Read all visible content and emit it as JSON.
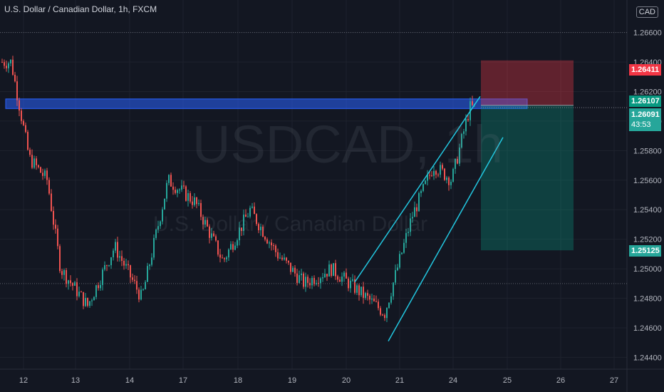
{
  "header": {
    "symbol_title": "U.S. Dollar / Canadian Dollar, 1h, FXCM",
    "currency": "CAD"
  },
  "watermark": {
    "ticker": "USDCAD, 1h",
    "name": "U.S. Dollar / Canadian Dollar"
  },
  "price_tags": {
    "stop": {
      "value": "1.26411",
      "color": "#f23645"
    },
    "entry": {
      "value": "1.26107",
      "color": "#089981"
    },
    "last": {
      "value": "1.26091",
      "countdown": "43:53",
      "color": "#26a69a"
    },
    "target": {
      "value": "1.25125",
      "color": "#26a69a"
    }
  },
  "chart_data": {
    "type": "candlestick",
    "y_ticks": [
      "1.26600",
      "1.26400",
      "1.26200",
      "1.26000",
      "1.25800",
      "1.25600",
      "1.25400",
      "1.25200",
      "1.25000",
      "1.24800",
      "1.24600",
      "1.24400"
    ],
    "x_ticks": [
      "12",
      "13",
      "14",
      "17",
      "18",
      "19",
      "20",
      "21",
      "24",
      "25",
      "26",
      "27"
    ],
    "ylim": [
      1.2432,
      1.2682
    ],
    "grid": true,
    "close_path": [
      [
        "12",
        1.264
      ],
      [
        "12",
        1.2575
      ],
      [
        "12",
        1.256
      ],
      [
        "13",
        1.25
      ],
      [
        "13",
        1.2475
      ],
      [
        "14",
        1.2515
      ],
      [
        "14",
        1.248
      ],
      [
        "17",
        1.256
      ],
      [
        "17",
        1.2545
      ],
      [
        "18",
        1.2505
      ],
      [
        "18",
        1.254
      ],
      [
        "19",
        1.251
      ],
      [
        "19",
        1.249
      ],
      [
        "20",
        1.25
      ],
      [
        "20",
        1.2485
      ],
      [
        "21",
        1.247
      ],
      [
        "21",
        1.2535
      ],
      [
        "24",
        1.257
      ],
      [
        "24",
        1.256
      ],
      [
        "24",
        1.26091
      ]
    ],
    "horizontal_levels": [
      1.266,
      1.249
    ],
    "supply_zone": {
      "top": 1.2615,
      "bottom": 1.26085,
      "from": "12",
      "to": "25"
    },
    "channel": {
      "upper": [
        [
          "20",
          1.2491
        ],
        [
          "24",
          1.26167
        ]
      ],
      "lower": [
        [
          "20",
          1.2451
        ],
        [
          "25",
          1.2589
        ]
      ]
    },
    "short_position": {
      "entry": 1.26107,
      "stop": 1.26411,
      "target": 1.25125,
      "from": "24",
      "to": "26"
    }
  }
}
